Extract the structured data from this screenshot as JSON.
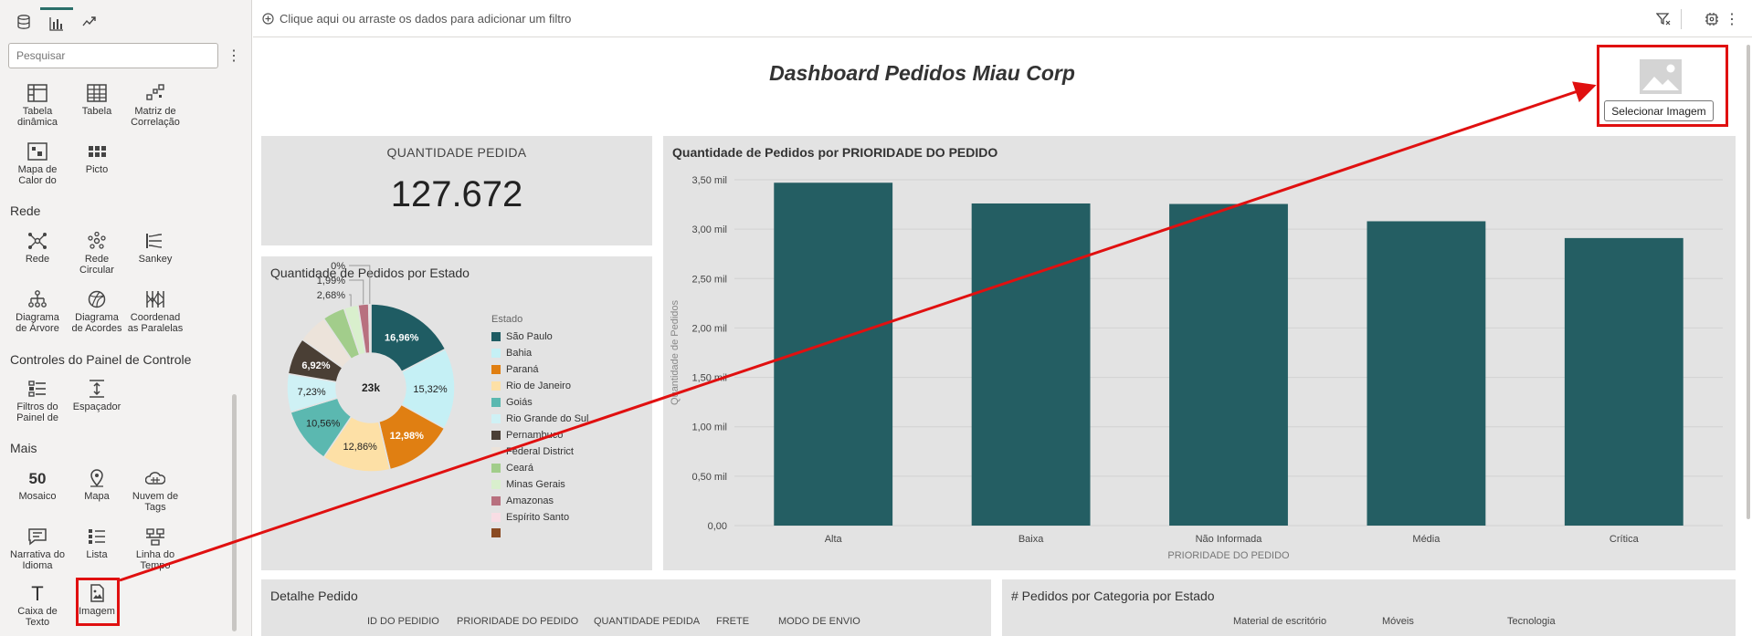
{
  "left_panel": {
    "search_placeholder": "Pesquisar",
    "top_items": [
      {
        "label": "Tabela dinâmica",
        "icon": "pivot-table-icon"
      },
      {
        "label": "Tabela",
        "icon": "table-icon"
      },
      {
        "label": "Matriz de Correlação",
        "icon": "correlation-matrix-icon"
      },
      {
        "label": "Mapa de Calor do",
        "icon": "heatmap-icon"
      },
      {
        "label": "Picto",
        "icon": "pictogram-icon"
      }
    ],
    "sections": [
      {
        "title": "Rede",
        "items": [
          {
            "label": "Rede",
            "icon": "network-icon"
          },
          {
            "label": "Rede Circular",
            "icon": "circular-network-icon"
          },
          {
            "label": "Sankey",
            "icon": "sankey-icon"
          },
          {
            "label": "Diagrama de Árvore",
            "icon": "tree-diagram-icon"
          },
          {
            "label": "Diagrama de Acordes",
            "icon": "chord-diagram-icon"
          },
          {
            "label": "Coordenad as Paralelas",
            "icon": "parallel-coordinates-icon"
          }
        ]
      },
      {
        "title": "Controles do Painel de Controle",
        "items": [
          {
            "label": "Filtros do Painel de",
            "icon": "dashboard-filters-icon"
          },
          {
            "label": "Espaçador",
            "icon": "spacer-icon"
          }
        ]
      },
      {
        "title": "Mais",
        "items": [
          {
            "label": "Mosaico",
            "icon": "tile-icon",
            "glyph": "50"
          },
          {
            "label": "Mapa",
            "icon": "map-pin-icon"
          },
          {
            "label": "Nuvem de Tags",
            "icon": "tag-cloud-icon"
          },
          {
            "label": "Narrativa do Idioma",
            "icon": "language-narrative-icon"
          },
          {
            "label": "Lista",
            "icon": "list-icon"
          },
          {
            "label": "Linha do Tempo",
            "icon": "timeline-icon"
          },
          {
            "label": "Caixa de Texto",
            "icon": "text-box-icon",
            "glyph": "T"
          },
          {
            "label": "Imagem",
            "icon": "image-icon"
          }
        ]
      }
    ]
  },
  "filter_bar": {
    "hint": "Clique aqui ou arraste os dados para adicionar um filtro"
  },
  "dashboard": {
    "title": "Dashboard Pedidos Miau Corp",
    "image_button": "Selecionar Imagem",
    "kpi": {
      "label": "QUANTIDADE PEDIDA",
      "value": "127.672"
    },
    "pie_title": "Quantidade de Pedidos por Estado",
    "bar_title": "Quantidade de Pedidos por PRIORIDADE DO PEDIDO",
    "detail_title": "Detalhe Pedido",
    "detail_columns": [
      "ID DO PEDIDIO",
      "PRIORIDADE DO PEDIDO",
      "QUANTIDADE PEDIDA",
      "FRETE",
      "MODO DE ENVIO"
    ],
    "category_title": "# Pedidos por Categoria por Estado",
    "category_columns": [
      "Material de escritório",
      "Móveis",
      "Tecnologia"
    ]
  },
  "chart_data": [
    {
      "type": "pie",
      "title": "Quantidade de Pedidos por Estado",
      "center_label": "23k",
      "legend_title": "Estado",
      "legend_position": "right",
      "slices": [
        {
          "name": "São Paulo",
          "value": 16.96,
          "label": "16,96%",
          "color": "#1f5c63"
        },
        {
          "name": "Bahia",
          "value": 15.32,
          "label": "15,32%",
          "color": "#c5f0f5"
        },
        {
          "name": "Paraná",
          "value": 12.98,
          "label": "12,98%",
          "color": "#e07f12"
        },
        {
          "name": "Rio de Janeiro",
          "value": 12.86,
          "label": "12,86%",
          "color": "#fde0a6"
        },
        {
          "name": "Goiás",
          "value": 10.56,
          "label": "10,56%",
          "color": "#5bb8b0"
        },
        {
          "name": "Rio Grande do Sul",
          "value": 7.23,
          "label": "7,23%",
          "color": "#cff1f5"
        },
        {
          "name": "Pernambuco",
          "value": 6.92,
          "label": "6,92%",
          "color": "#4a3f35"
        },
        {
          "name": "Federal District",
          "value": 5.6,
          "label": "",
          "color": "#ece3da"
        },
        {
          "name": "Ceará",
          "value": 4.2,
          "label": "",
          "color": "#a2cd8b"
        },
        {
          "name": "Minas Gerais",
          "value": 2.68,
          "label": "2,68%",
          "color": "#d9efcd"
        },
        {
          "name": "Amazonas",
          "value": 1.99,
          "label": "1,99%",
          "color": "#b8707f"
        },
        {
          "name": "Espírito Santo",
          "value": 0.4,
          "label": "0%",
          "color": "#f8dde4"
        },
        {
          "name": "",
          "value": 0.0,
          "label": "",
          "color": "#8a4a22"
        }
      ]
    },
    {
      "type": "bar",
      "title": "Quantidade de Pedidos por PRIORIDADE DO PEDIDO",
      "xlabel": "PRIORIDADE DO PEDIDO",
      "ylabel": "Quantidade de Pedidos",
      "categories": [
        "Alta",
        "Baixa",
        "Não Informada",
        "Média",
        "Crítica"
      ],
      "values": [
        3470,
        3260,
        3255,
        3080,
        2910
      ],
      "ylim": [
        0,
        3500
      ],
      "yticks": [
        0,
        500,
        1000,
        1500,
        2000,
        2500,
        3000,
        3500
      ],
      "ytick_labels": [
        "0,00",
        "0,50 mil",
        "1,00 mil",
        "1,50 mil",
        "2,00 mil",
        "2,50 mil",
        "3,00 mil",
        "3,50 mil"
      ],
      "grid": true,
      "color": "#245e63"
    }
  ]
}
